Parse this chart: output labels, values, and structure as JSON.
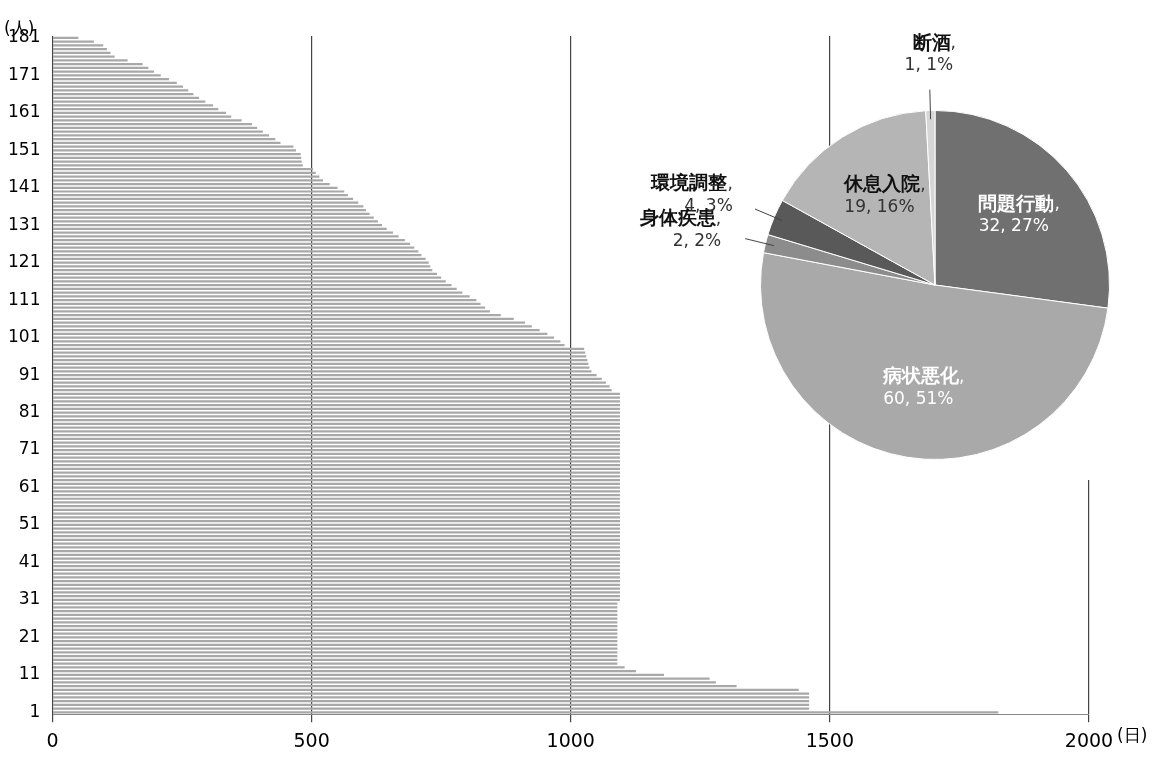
{
  "chart_data": [
    {
      "type": "bar",
      "orientation": "horizontal",
      "xlabel": "(日)",
      "ylabel": "(人)",
      "categories": [
        "181",
        null,
        null,
        null,
        null,
        null,
        null,
        null,
        null,
        null,
        "171",
        null,
        null,
        null,
        null,
        null,
        null,
        null,
        null,
        null,
        "161",
        null,
        null,
        null,
        null,
        null,
        null,
        null,
        null,
        null,
        "151",
        null,
        null,
        null,
        null,
        null,
        null,
        null,
        null,
        null,
        "141",
        null,
        null,
        null,
        null,
        null,
        null,
        null,
        null,
        null,
        "131",
        null,
        null,
        null,
        null,
        null,
        null,
        null,
        null,
        null,
        "121",
        null,
        null,
        null,
        null,
        null,
        null,
        null,
        null,
        null,
        "111",
        null,
        null,
        null,
        null,
        null,
        null,
        null,
        null,
        null,
        "101",
        null,
        null,
        null,
        null,
        null,
        null,
        null,
        null,
        null,
        "91",
        null,
        null,
        null,
        null,
        null,
        null,
        null,
        null,
        null,
        "81",
        null,
        null,
        null,
        null,
        null,
        null,
        null,
        null,
        null,
        "71",
        null,
        null,
        null,
        null,
        null,
        null,
        null,
        null,
        null,
        "61",
        null,
        null,
        null,
        null,
        null,
        null,
        null,
        null,
        null,
        "51",
        null,
        null,
        null,
        null,
        null,
        null,
        null,
        null,
        null,
        "41",
        null,
        null,
        null,
        null,
        null,
        null,
        null,
        null,
        null,
        "31",
        null,
        null,
        null,
        null,
        null,
        null,
        null,
        null,
        null,
        "21",
        null,
        null,
        null,
        null,
        null,
        null,
        null,
        null,
        null,
        "11",
        null,
        null,
        null,
        null,
        null,
        null,
        null,
        null,
        null,
        "1"
      ],
      "values": [
        50,
        80,
        98,
        105,
        112,
        120,
        145,
        174,
        185,
        196,
        209,
        225,
        240,
        252,
        262,
        272,
        283,
        295,
        310,
        320,
        335,
        345,
        365,
        385,
        395,
        406,
        418,
        430,
        440,
        465,
        470,
        479,
        480,
        481,
        483,
        503,
        508,
        515,
        522,
        535,
        550,
        563,
        570,
        580,
        590,
        600,
        605,
        612,
        620,
        628,
        636,
        645,
        657,
        668,
        680,
        690,
        698,
        706,
        712,
        720,
        726,
        729,
        733,
        742,
        750,
        759,
        770,
        780,
        791,
        805,
        818,
        826,
        835,
        844,
        865,
        890,
        912,
        925,
        940,
        955,
        968,
        980,
        988,
        1026,
        1028,
        1030,
        1032,
        1034,
        1036,
        1040,
        1050,
        1060,
        1068,
        1075,
        1079,
        1095,
        1095,
        1095,
        1095,
        1095,
        1095,
        1095,
        1095,
        1095,
        1095,
        1095,
        1095,
        1095,
        1095,
        1095,
        1095,
        1095,
        1095,
        1095,
        1095,
        1095,
        1095,
        1095,
        1095,
        1095,
        1095,
        1095,
        1095,
        1095,
        1095,
        1095,
        1095,
        1095,
        1095,
        1095,
        1095,
        1095,
        1095,
        1095,
        1095,
        1095,
        1095,
        1095,
        1095,
        1095,
        1095,
        1095,
        1095,
        1095,
        1095,
        1095,
        1095,
        1095,
        1095,
        1095,
        1095,
        1090,
        1090,
        1090,
        1090,
        1090,
        1090,
        1090,
        1090,
        1090,
        1090,
        1090,
        1090,
        1090,
        1090,
        1090,
        1090,
        1090,
        1104,
        1126,
        1180,
        1268,
        1280,
        1320,
        1440,
        1460,
        1460,
        1460,
        1460,
        1460,
        1825
      ],
      "color": "#a8a8a8",
      "xlim": [
        0,
        2000
      ],
      "xticks": [
        0,
        500,
        1000,
        1500,
        2000
      ],
      "grid": "x"
    },
    {
      "type": "pie",
      "categories": [
        "問題行動",
        "病状悪化",
        "身体疾患",
        "環境調整",
        "休息入院",
        "断酒"
      ],
      "values": [
        32,
        60,
        2,
        4,
        19,
        1
      ],
      "value_labels": [
        ", 32, 27%",
        ", 60, 51%",
        ", 2, 2%",
        ", 4, 3%",
        ", 19, 16%",
        ", 1, 1%"
      ],
      "colors": [
        "#707070",
        "#a9a9a9",
        "#8c8c8c",
        "#595959",
        "#b5b5b5",
        "#d6d6d6"
      ]
    }
  ]
}
